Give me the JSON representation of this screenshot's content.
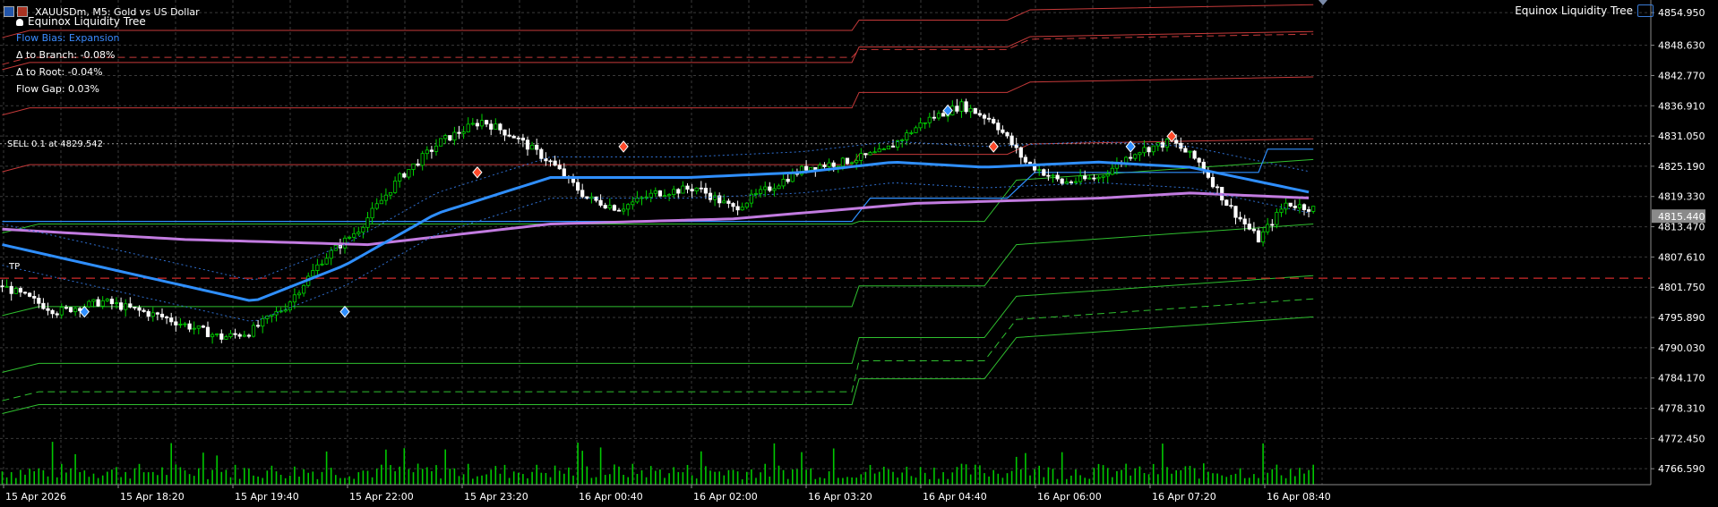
{
  "window": {
    "symbol_caption": "XAUUSDm, M5:  Gold vs US Dollar",
    "indicator_name": "Equinox Liquidity Tree",
    "corner_label": "Equinox Liquidity Tree"
  },
  "info_panel": {
    "flow_bias": "Flow Bias: Expansion",
    "delta_branch": "Δ to Branch: -0.08%",
    "delta_root": "Δ to Root: -0.04%",
    "flow_gap": "Flow Gap: 0.03%"
  },
  "trade_labels": {
    "sell": "SELL 0.1 at 4829.542",
    "tp": "TP"
  },
  "colors": {
    "background": "#000000",
    "grid": "#3a3a3a",
    "candle_bull": "#00d400",
    "candle_bear": "#ffffff",
    "ma_fast": "#2f8fff",
    "ma_slow": "#c27be0",
    "resistance": "#c63a3a",
    "support": "#2fbf2f",
    "flow_bias_text": "#3a8bff",
    "volume": "#00c800",
    "price_tag": "#8a8a8a"
  },
  "chart_data": {
    "type": "candlestick",
    "symbol": "XAUUSDm",
    "timeframe": "M5",
    "y_ticks": [
      "4854.950",
      "4848.630",
      "4842.770",
      "4836.910",
      "4831.050",
      "4825.190",
      "4819.330",
      "4813.470",
      "4807.610",
      "4801.750",
      "4795.890",
      "4790.030",
      "4784.170",
      "4778.310",
      "4772.450",
      "4766.590"
    ],
    "x_ticks": [
      "15 Apr 2026",
      "15 Apr 18:20",
      "15 Apr 19:40",
      "15 Apr 22:00",
      "15 Apr 23:20",
      "16 Apr 00:40",
      "16 Apr 02:00",
      "16 Apr 03:20",
      "16 Apr 04:40",
      "16 Apr 06:00",
      "16 Apr 07:20",
      "16 Apr 08:40"
    ],
    "current_price": "4815.440",
    "ylim": [
      4763.5,
      4857.4
    ],
    "price_path": [
      [
        0,
        4802
      ],
      [
        12,
        4797
      ],
      [
        22,
        4799
      ],
      [
        35,
        4796
      ],
      [
        48,
        4792
      ],
      [
        54,
        4793
      ],
      [
        62,
        4798
      ],
      [
        70,
        4807
      ],
      [
        78,
        4813
      ],
      [
        87,
        4823
      ],
      [
        96,
        4830
      ],
      [
        105,
        4834
      ],
      [
        112,
        4831
      ],
      [
        120,
        4826
      ],
      [
        128,
        4819
      ],
      [
        135,
        4817
      ],
      [
        143,
        4820
      ],
      [
        152,
        4821
      ],
      [
        160,
        4817
      ],
      [
        168,
        4821
      ],
      [
        176,
        4825
      ],
      [
        184,
        4826
      ],
      [
        193,
        4828
      ],
      [
        202,
        4834
      ],
      [
        210,
        4837
      ],
      [
        217,
        4834
      ],
      [
        224,
        4826
      ],
      [
        232,
        4822
      ],
      [
        240,
        4823
      ],
      [
        248,
        4828
      ],
      [
        256,
        4830
      ],
      [
        262,
        4826
      ],
      [
        268,
        4818
      ],
      [
        275,
        4811
      ],
      [
        281,
        4818
      ],
      [
        287,
        4817
      ]
    ],
    "ma_fast": [
      [
        0,
        4810
      ],
      [
        30,
        4804
      ],
      [
        55,
        4799
      ],
      [
        75,
        4806
      ],
      [
        95,
        4816
      ],
      [
        120,
        4823
      ],
      [
        150,
        4823
      ],
      [
        175,
        4824
      ],
      [
        195,
        4826
      ],
      [
        215,
        4825
      ],
      [
        240,
        4826
      ],
      [
        260,
        4825
      ],
      [
        287,
        4820
      ]
    ],
    "ma_slow": [
      [
        0,
        4813
      ],
      [
        40,
        4811
      ],
      [
        80,
        4810
      ],
      [
        120,
        4814
      ],
      [
        160,
        4815
      ],
      [
        200,
        4818
      ],
      [
        240,
        4819
      ],
      [
        260,
        4820
      ],
      [
        287,
        4819
      ]
    ],
    "resistance_levels": [
      4836.5,
      4851.5,
      4846.3,
      4825.5,
      4845.3
    ],
    "support_levels": [
      4814.0,
      4798.0,
      4787.0,
      4781.5,
      4779.0
    ],
    "red_dashed_level": 4803.5,
    "sell_level": 4829.542,
    "signals_buy": [
      [
        18,
        4797
      ],
      [
        75,
        4797
      ],
      [
        207,
        4836
      ],
      [
        247,
        4829
      ]
    ],
    "signals_sell": [
      [
        104,
        4824
      ],
      [
        136,
        4829
      ],
      [
        217,
        4829
      ],
      [
        256,
        4831
      ]
    ]
  }
}
